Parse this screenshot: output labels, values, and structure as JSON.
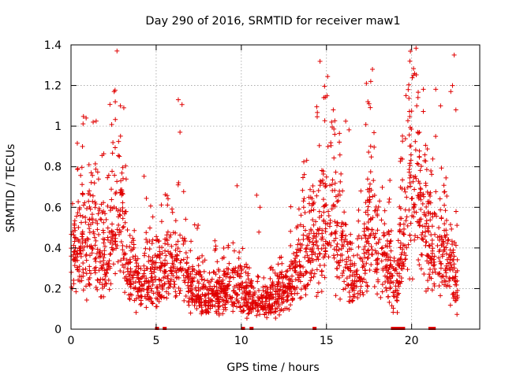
{
  "chart_data": {
    "type": "scatter",
    "title": "Day 290 of 2016, SRMTID for receiver maw1",
    "xlabel": "GPS time / hours",
    "ylabel": "SRMTID / TECUs",
    "xlim": [
      0,
      24
    ],
    "ylim": [
      0,
      1.4
    ],
    "grid": true,
    "marker": "+",
    "series_color": "#e00000",
    "x_ticks": [
      0,
      5,
      10,
      15,
      20
    ],
    "x_tick_labels": [
      "0",
      "5",
      "10",
      "15",
      "20"
    ],
    "y_ticks": [
      0,
      0.2,
      0.4,
      0.6,
      0.8,
      1.0,
      1.2,
      1.4
    ],
    "y_tick_labels": [
      "0",
      "0.2",
      "0.4",
      "0.6",
      "0.8",
      "1",
      "1.2",
      "1.4"
    ],
    "series": [
      {
        "name": "SRMTID",
        "generator": "pseudo-random scatter reproducing the visible density envelope",
        "seed": 290,
        "x_range": [
          0,
          22.7
        ],
        "samples": 2400,
        "envelope": [
          {
            "x": 0.0,
            "y": 0.4
          },
          {
            "x": 0.5,
            "y": 0.48
          },
          {
            "x": 1.0,
            "y": 0.38
          },
          {
            "x": 1.5,
            "y": 0.45
          },
          {
            "x": 2.0,
            "y": 0.3
          },
          {
            "x": 2.5,
            "y": 0.55
          },
          {
            "x": 2.9,
            "y": 0.6
          },
          {
            "x": 3.3,
            "y": 0.3
          },
          {
            "x": 4.0,
            "y": 0.22
          },
          {
            "x": 5.0,
            "y": 0.25
          },
          {
            "x": 6.0,
            "y": 0.33
          },
          {
            "x": 6.5,
            "y": 0.38
          },
          {
            "x": 7.0,
            "y": 0.22
          },
          {
            "x": 8.0,
            "y": 0.15
          },
          {
            "x": 9.0,
            "y": 0.2
          },
          {
            "x": 10.0,
            "y": 0.2
          },
          {
            "x": 11.0,
            "y": 0.14
          },
          {
            "x": 12.0,
            "y": 0.15
          },
          {
            "x": 13.0,
            "y": 0.25
          },
          {
            "x": 14.0,
            "y": 0.42
          },
          {
            "x": 15.0,
            "y": 0.58
          },
          {
            "x": 15.5,
            "y": 0.55
          },
          {
            "x": 16.0,
            "y": 0.38
          },
          {
            "x": 16.5,
            "y": 0.22
          },
          {
            "x": 17.0,
            "y": 0.28
          },
          {
            "x": 17.5,
            "y": 0.55
          },
          {
            "x": 18.0,
            "y": 0.4
          },
          {
            "x": 18.5,
            "y": 0.35
          },
          {
            "x": 19.0,
            "y": 0.2
          },
          {
            "x": 19.5,
            "y": 0.45
          },
          {
            "x": 20.0,
            "y": 0.8
          },
          {
            "x": 20.5,
            "y": 0.65
          },
          {
            "x": 21.0,
            "y": 0.5
          },
          {
            "x": 21.5,
            "y": 0.4
          },
          {
            "x": 22.0,
            "y": 0.35
          },
          {
            "x": 22.7,
            "y": 0.25
          }
        ],
        "highlights": [
          {
            "x": 2.7,
            "y": 1.37
          },
          {
            "x": 2.6,
            "y": 1.12
          },
          {
            "x": 2.9,
            "y": 1.1
          },
          {
            "x": 3.1,
            "y": 1.09
          },
          {
            "x": 1.3,
            "y": 1.02
          },
          {
            "x": 6.3,
            "y": 1.13
          },
          {
            "x": 6.4,
            "y": 0.97
          },
          {
            "x": 15.4,
            "y": 1.08
          },
          {
            "x": 15.3,
            "y": 1.02
          },
          {
            "x": 17.7,
            "y": 1.28
          },
          {
            "x": 17.6,
            "y": 1.22
          },
          {
            "x": 17.5,
            "y": 1.11
          },
          {
            "x": 19.9,
            "y": 1.32
          },
          {
            "x": 20.1,
            "y": 1.25
          },
          {
            "x": 19.8,
            "y": 1.18
          },
          {
            "x": 20.3,
            "y": 1.1
          },
          {
            "x": 22.5,
            "y": 1.35
          },
          {
            "x": 22.4,
            "y": 1.2
          },
          {
            "x": 22.3,
            "y": 1.17
          },
          {
            "x": 22.6,
            "y": 1.08
          },
          {
            "x": 21.7,
            "y": 1.1
          },
          {
            "x": 10.9,
            "y": 0.66
          },
          {
            "x": 11.1,
            "y": 0.6
          }
        ],
        "zero_values_x": [
          5.05,
          5.5,
          10.1,
          10.6,
          14.3,
          18.9,
          19.1,
          19.3,
          19.5,
          21.1,
          21.3
        ]
      }
    ]
  }
}
